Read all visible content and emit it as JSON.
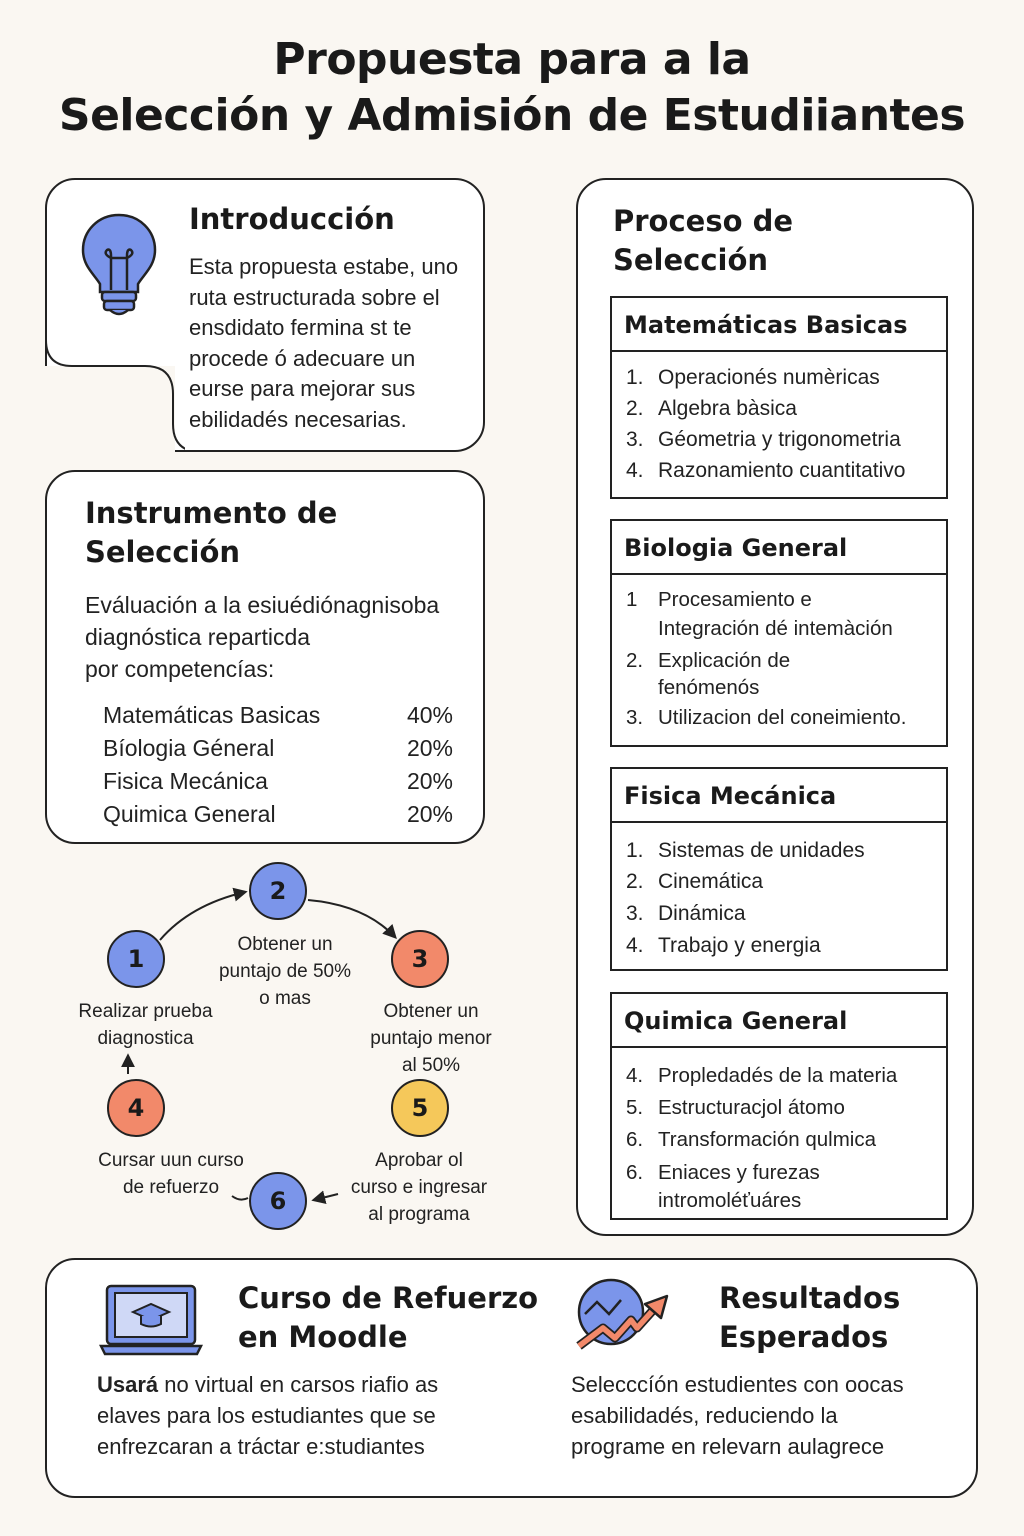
{
  "title": {
    "line1": "Propuesta para a la",
    "line2": "Selección y Admisión de Estudiiantes"
  },
  "intro": {
    "heading": "Introducción",
    "icon": "lightbulb-icon",
    "lines": [
      "Esta propuesta estabe, uno",
      "ruta estructurada sobre el",
      "ensdidato fermina st te",
      "procede ó adecuare un",
      "eurse para mejorar sus",
      "ebilidadés necesarias."
    ]
  },
  "instrumento": {
    "heading_l1": "Instrumento de",
    "heading_l2": "Selección",
    "desc": [
      "Eváluación a la esiuédiónagnisoba",
      "diagnóstica reparticda",
      "por competencías:"
    ],
    "weights": [
      {
        "subject": "Matemáticas Basicas",
        "pct": "40%"
      },
      {
        "subject": "Bíologia Géneral",
        "pct": "20%"
      },
      {
        "subject": "Fisica Mecánica",
        "pct": "20%"
      },
      {
        "subject": "Quimica General",
        "pct": "20%"
      }
    ]
  },
  "proceso": {
    "heading_l1": "Proceso de",
    "heading_l2": "Selección",
    "blocks": [
      {
        "title": "Matemáticas Basicas",
        "items": [
          {
            "n": "1.",
            "lines": [
              "Operacionés numèricas"
            ]
          },
          {
            "n": "2.",
            "lines": [
              "Algebra bàsica"
            ]
          },
          {
            "n": "3.",
            "lines": [
              "Géometria y trigonometria"
            ]
          },
          {
            "n": "4.",
            "lines": [
              "Razonamiento cuantitativo"
            ]
          }
        ]
      },
      {
        "title": "Biologia General",
        "items": [
          {
            "n": "1",
            "lines": [
              "Procesamiento e",
              "Integración dé intemàción"
            ]
          },
          {
            "n": "2.",
            "lines": [
              "Explicación de",
              "fenómenós"
            ]
          },
          {
            "n": "3.",
            "lines": [
              "Utilizacion del coneimiento."
            ]
          }
        ]
      },
      {
        "title": "Fisica Mecánica",
        "items": [
          {
            "n": "1.",
            "lines": [
              "Sistemas de unidades"
            ]
          },
          {
            "n": "2.",
            "lines": [
              "Cinemática"
            ]
          },
          {
            "n": "3.",
            "lines": [
              "Dinámica"
            ]
          },
          {
            "n": "4.",
            "lines": [
              "Trabajo y energia"
            ]
          }
        ]
      },
      {
        "title": "Quimica General",
        "items": [
          {
            "n": "4.",
            "lines": [
              "Propledadés de la materia"
            ]
          },
          {
            "n": "5.",
            "lines": [
              "Estructuracjol átomo"
            ]
          },
          {
            "n": "6.",
            "lines": [
              "Transformación qulmica"
            ]
          },
          {
            "n": "6.",
            "lines": [
              "Eniaces y furezas",
              "intromoléťuáres"
            ]
          }
        ]
      }
    ]
  },
  "flow": {
    "colors": {
      "blue": "#7b95ea",
      "orange": "#f2896a",
      "yellow": "#f5c85a"
    },
    "nodes": [
      {
        "id": "n1",
        "label": "1",
        "color": "blue",
        "text": [
          "Realizar prueba",
          "diagnostica"
        ]
      },
      {
        "id": "n2",
        "label": "2",
        "color": "blue",
        "text": [
          "Obtener un",
          "puntajo de 50%",
          "o mas"
        ]
      },
      {
        "id": "n3",
        "label": "3",
        "color": "orange",
        "text": [
          "Obtener un",
          "puntajo menor",
          "al 50%"
        ]
      },
      {
        "id": "n4",
        "label": "4",
        "color": "orange",
        "text": [
          "Cursar uun curso",
          "de refuerzo"
        ]
      },
      {
        "id": "n5",
        "label": "5",
        "color": "yellow",
        "text": [
          "Aprobar ol",
          "curso e ingresar",
          "al programa"
        ]
      },
      {
        "id": "n6",
        "label": "6",
        "color": "blue",
        "text": []
      }
    ]
  },
  "refuerzo": {
    "heading_l1": "Curso de Refuerzo",
    "heading_l2": "en Moodle",
    "icon": "laptop-graduation-icon",
    "lead": "Usará",
    "lines": [
      " no virtual en carsos riafio as",
      "elaves para los estudiantes que se",
      "enfrezcaran a tráctar e:studiantes"
    ]
  },
  "resultados": {
    "heading_l1": "Resultados",
    "heading_l2": "Esperados",
    "icon": "growth-chart-icon",
    "lines": [
      "Selecccíón estudientes con oocas",
      "esabilidadés, reduciendo la",
      "programe en relevarn aulagrece"
    ]
  }
}
